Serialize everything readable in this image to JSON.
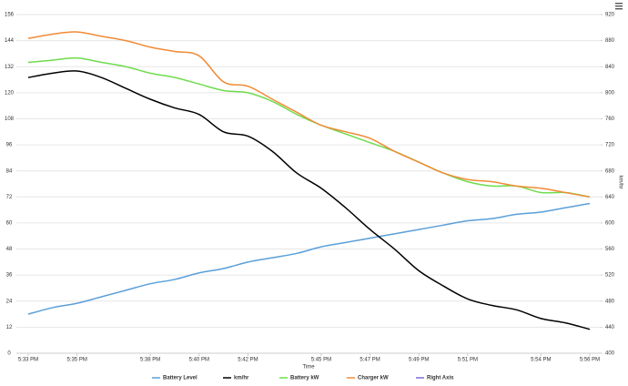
{
  "chart_data": {
    "type": "line",
    "x_label": "Time",
    "y2_label": "km/hr",
    "categories": [
      "5:33 PM",
      null,
      "5:35 PM",
      null,
      null,
      "5:38 PM",
      null,
      "5:40 PM",
      null,
      "5:42 PM",
      null,
      null,
      "5:45 PM",
      null,
      "5:47 PM",
      null,
      "5:49 PM",
      null,
      "5:51 PM",
      null,
      null,
      "5:54 PM",
      null,
      "5:56 PM"
    ],
    "ylim": [
      0,
      156
    ],
    "yticks": [
      0,
      12,
      24,
      36,
      48,
      60,
      72,
      84,
      96,
      108,
      120,
      132,
      144,
      156
    ],
    "y2lim": [
      400,
      920
    ],
    "y2ticks": [
      400,
      440,
      480,
      520,
      560,
      600,
      640,
      680,
      720,
      760,
      800,
      840,
      880,
      920
    ],
    "grid": true,
    "legend": "bottom",
    "series": [
      {
        "name": "Battery Level",
        "color": "#5a9fd8",
        "values": [
          18,
          21,
          23,
          26,
          29,
          32,
          34,
          37,
          39,
          42,
          44,
          46,
          49,
          51,
          53,
          55,
          57,
          59,
          61,
          62,
          64,
          65,
          67,
          69
        ]
      },
      {
        "name": "km/hr",
        "color": "#000000",
        "values": [
          127,
          129,
          130,
          127,
          122,
          117,
          113,
          110,
          102,
          100,
          93,
          83,
          76,
          67,
          57,
          48,
          38,
          31,
          25,
          22,
          20,
          16,
          14,
          11
        ]
      },
      {
        "name": "Battery kW",
        "color": "#6fdc4c",
        "values": [
          134,
          135,
          136,
          134,
          132,
          129,
          127,
          124,
          121,
          120,
          116,
          110,
          105,
          101,
          97,
          93,
          88,
          83,
          79,
          77,
          77,
          74,
          74,
          72
        ]
      },
      {
        "name": "Charger kW",
        "color": "#f08b36",
        "values": [
          145,
          147,
          148,
          146,
          144,
          141,
          139,
          137,
          125,
          123,
          117,
          111,
          105,
          102,
          99,
          93,
          88,
          83,
          80,
          79,
          77,
          76,
          74,
          72
        ]
      },
      {
        "name": "Right Axis",
        "color": "#7b6fd6",
        "axis": "y2",
        "values": [
          null,
          null,
          null,
          null,
          null,
          null,
          null,
          null,
          null,
          null,
          null,
          null,
          null,
          null,
          null,
          null,
          null,
          null,
          null,
          null,
          null,
          null,
          null,
          null
        ]
      }
    ]
  }
}
